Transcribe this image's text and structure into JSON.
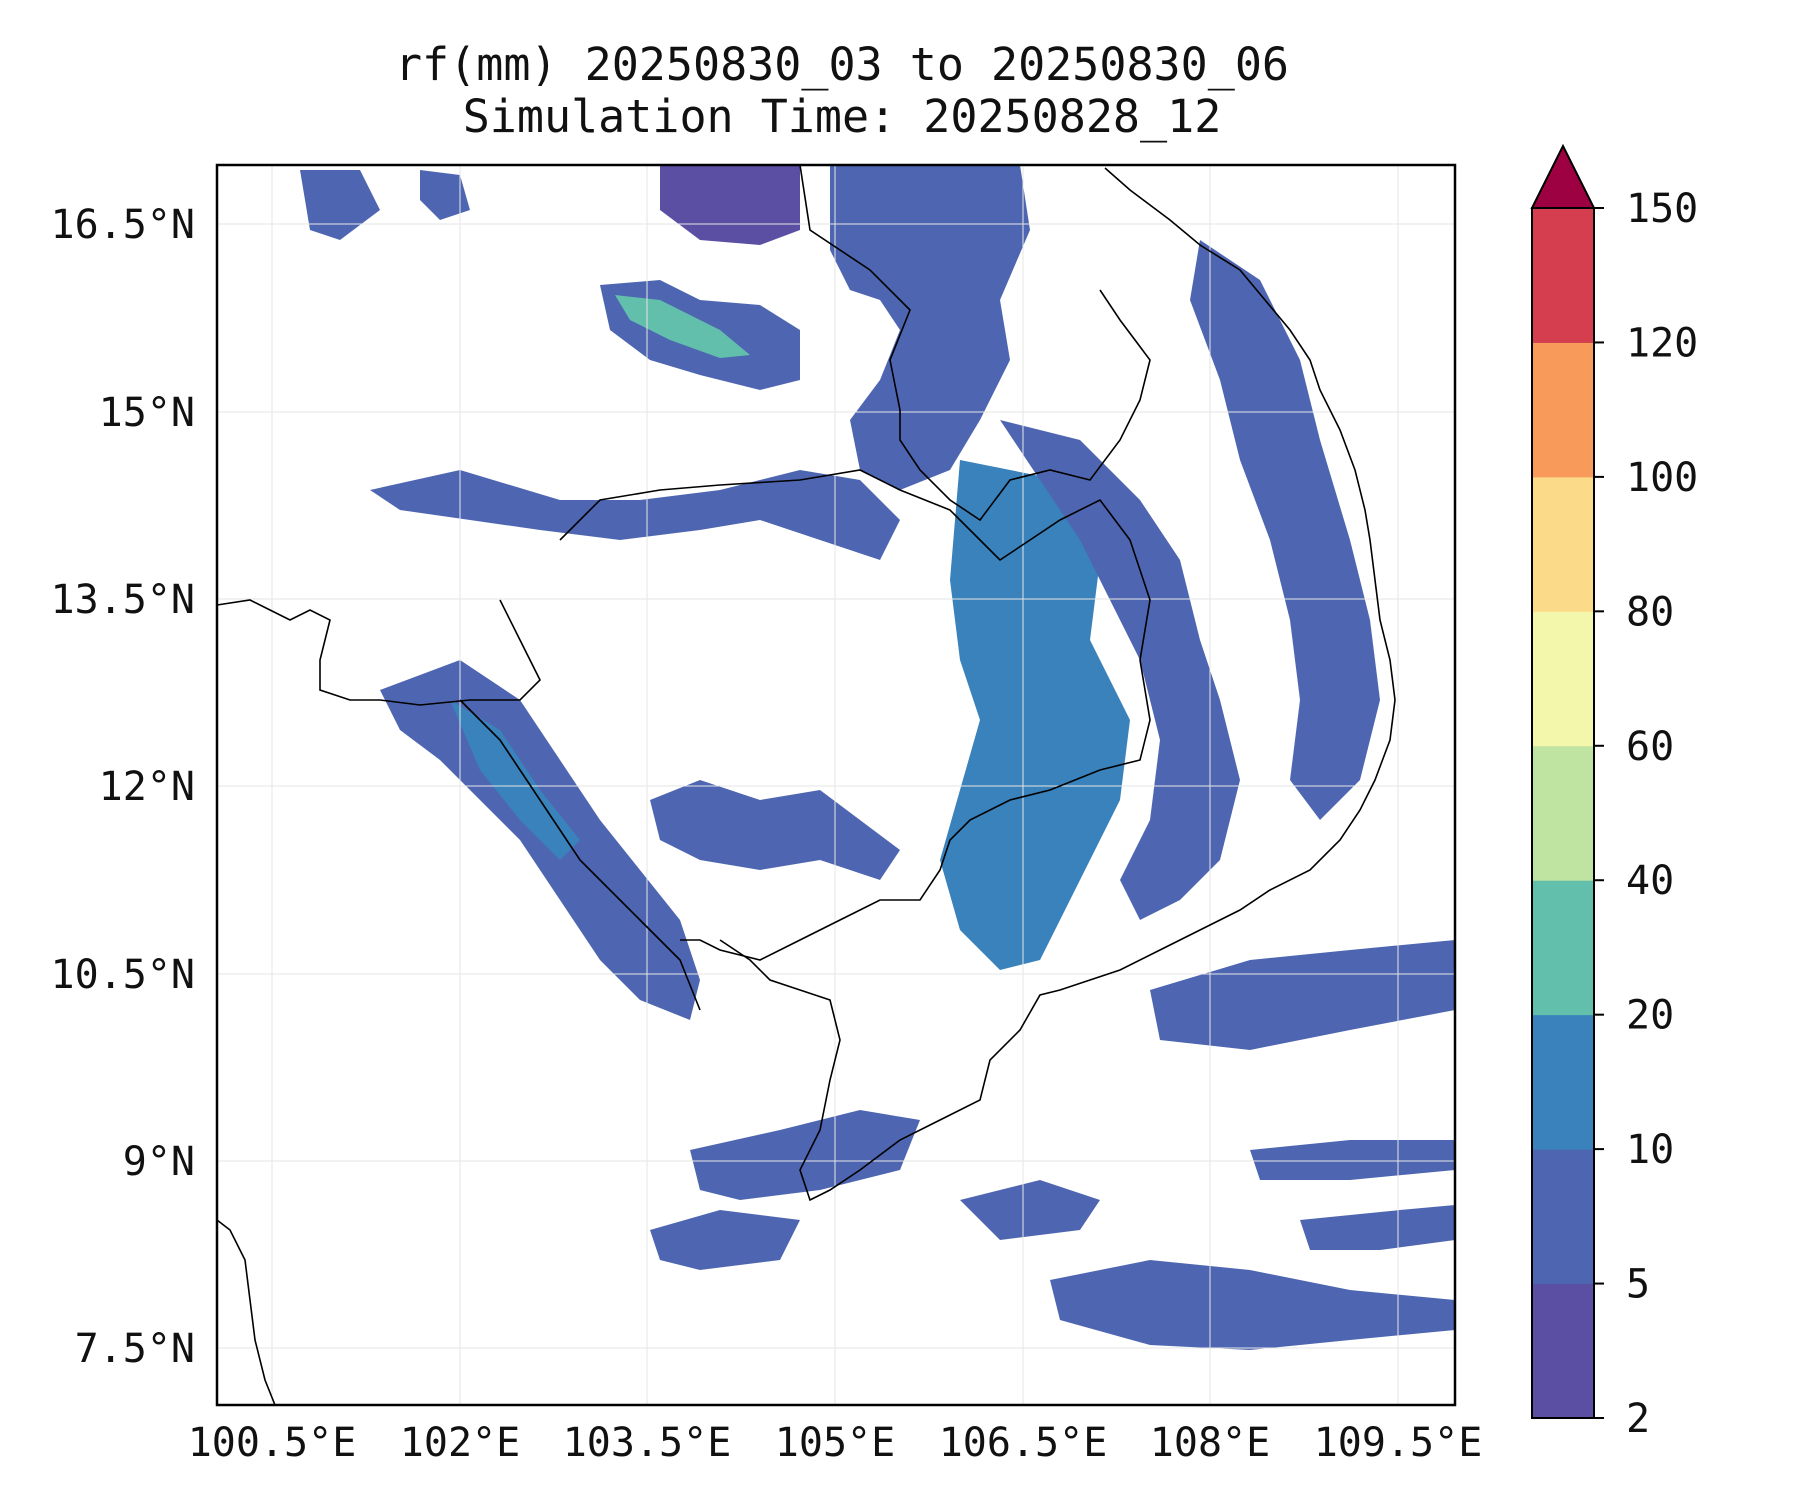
{
  "title": {
    "line1": "rf(mm) 20250830_03 to 20250830_06",
    "line2": "Simulation Time: 20250828_12"
  },
  "map": {
    "lon_ticks": [
      "100.5°E",
      "102°E",
      "103.5°E",
      "105°E",
      "106.5°E",
      "108°E",
      "109.5°E"
    ],
    "lat_ticks": [
      "16.5°N",
      "15°N",
      "13.5°N",
      "12°N",
      "10.5°N",
      "9°N",
      "7.5°N"
    ],
    "extent": {
      "lon": [
        100.5,
        110.4
      ],
      "lat": [
        7.05,
        16.95
      ]
    },
    "gridlines": true,
    "coastline_color": "#000000"
  },
  "colorbar": {
    "levels": [
      "2",
      "5",
      "10",
      "20",
      "40",
      "60",
      "80",
      "100",
      "120",
      "150"
    ],
    "colors": [
      "#5a4fa2",
      "#4e66b1",
      "#3a82bb",
      "#62bfab",
      "#bfe3a0",
      "#f3f7ac",
      "#fbdb8a",
      "#f89b5a",
      "#d53e4f",
      "#9e0142"
    ],
    "extend": "max"
  }
}
